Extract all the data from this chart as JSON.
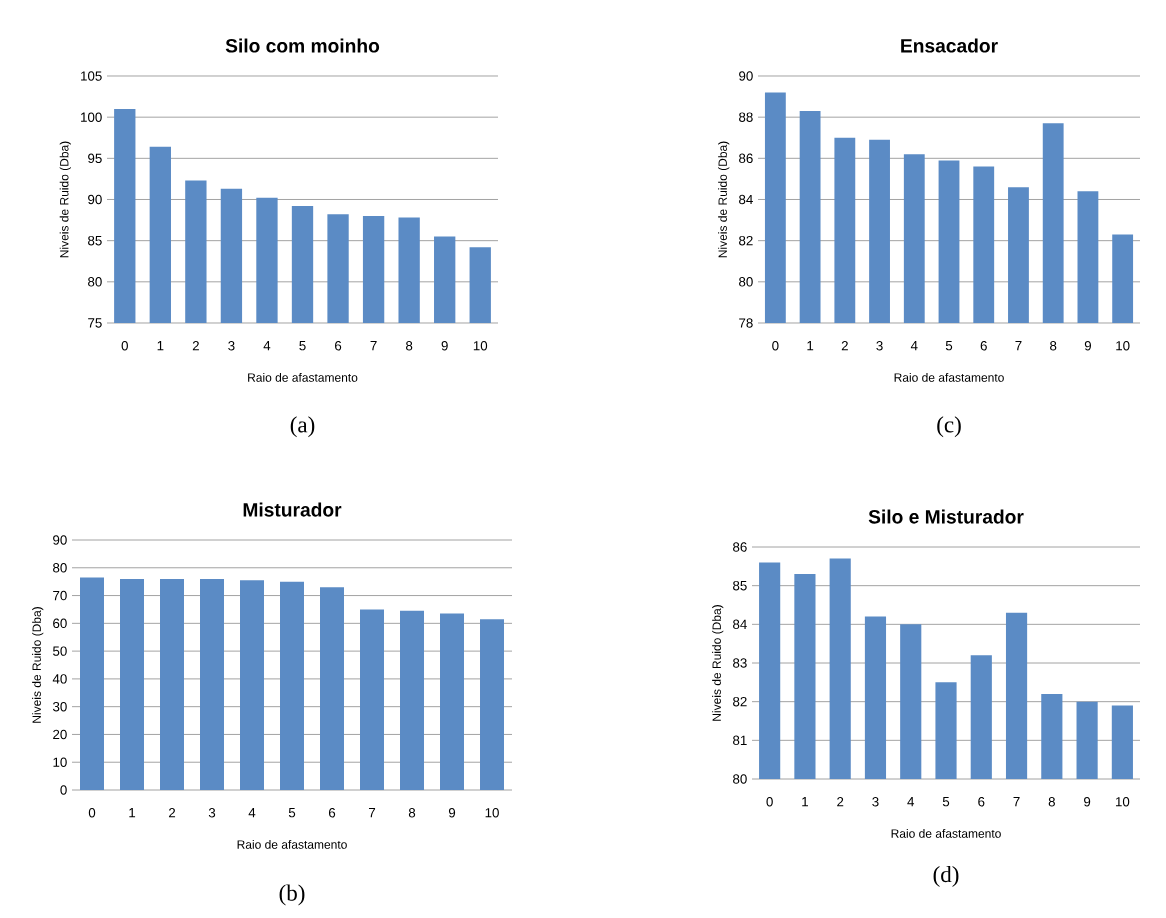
{
  "chart_data": [
    {
      "type": "bar",
      "title": "Silo com moinho",
      "xlabel": "Raio de afastamento",
      "ylabel": "Niveis de Ruido (Dba)",
      "categories": [
        "0",
        "1",
        "2",
        "3",
        "4",
        "5",
        "6",
        "7",
        "8",
        "9",
        "10"
      ],
      "values": [
        101,
        96.4,
        92.3,
        91.3,
        90.2,
        89.2,
        88.2,
        88,
        87.8,
        85.5,
        84.2
      ],
      "color": "#5b8bc5",
      "ylim": [
        75,
        105
      ],
      "yticks": [
        75,
        80,
        85,
        90,
        95,
        100,
        105
      ],
      "grid": "y",
      "annotations": [
        "(a)"
      ]
    },
    {
      "type": "bar",
      "title": "Ensacador",
      "xlabel": "Raio de afastamento",
      "ylabel": "Niveis de Ruido (Dba)",
      "categories": [
        "0",
        "1",
        "2",
        "3",
        "4",
        "5",
        "6",
        "7",
        "8",
        "9",
        "10"
      ],
      "values": [
        89.2,
        88.3,
        87,
        86.9,
        86.2,
        85.9,
        85.6,
        84.6,
        87.7,
        84.4,
        82.3
      ],
      "color": "#5b8bc5",
      "ylim": [
        78,
        90
      ],
      "yticks": [
        78,
        80,
        82,
        84,
        86,
        88,
        90
      ],
      "grid": "y",
      "annotations": [
        "(c)"
      ]
    },
    {
      "type": "bar",
      "title": "Misturador",
      "xlabel": "Raio de afastamento",
      "ylabel": "Niveis de Ruido (Dba)",
      "categories": [
        "0",
        "1",
        "2",
        "3",
        "4",
        "5",
        "6",
        "7",
        "8",
        "9",
        "10"
      ],
      "values": [
        76.5,
        76,
        76,
        76,
        75.5,
        75,
        73,
        65,
        64.5,
        63.5,
        61.5
      ],
      "color": "#5b8bc5",
      "ylim": [
        0,
        90
      ],
      "yticks": [
        0,
        10,
        20,
        30,
        40,
        50,
        60,
        70,
        80,
        90
      ],
      "grid": "y",
      "annotations": [
        "(b)"
      ]
    },
    {
      "type": "bar",
      "title": "Silo e Misturador",
      "xlabel": "Raio de afastamento",
      "ylabel": "Niveis de Ruido (Dba)",
      "categories": [
        "0",
        "1",
        "2",
        "3",
        "4",
        "5",
        "6",
        "7",
        "8",
        "9",
        "10"
      ],
      "values": [
        85.6,
        85.3,
        85.7,
        84.2,
        84,
        82.5,
        83.2,
        84.3,
        82.2,
        82,
        81.9
      ],
      "color": "#5b8bc5",
      "ylim": [
        80,
        86
      ],
      "yticks": [
        80,
        81,
        82,
        83,
        84,
        85,
        86
      ],
      "grid": "y",
      "annotations": [
        "(d)"
      ]
    }
  ]
}
